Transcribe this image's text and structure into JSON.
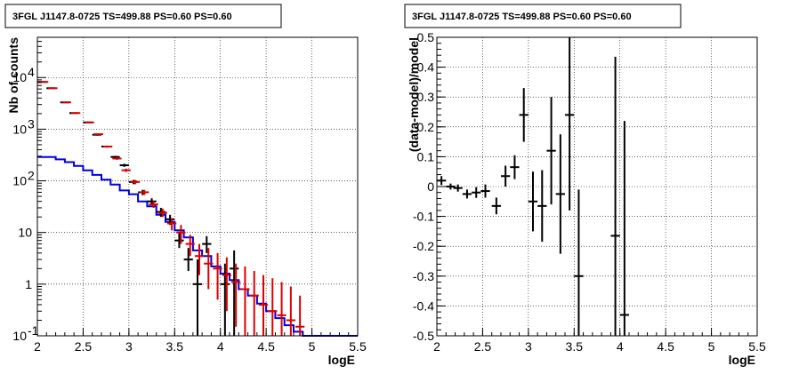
{
  "colors": {
    "data": "#000000",
    "model": "#dd0000",
    "background_model": "#0000dd"
  },
  "chart_data": [
    {
      "type": "step_histogram",
      "title": "3FGL J1147.8-0725 TS=499.88 PS=0.60 PS=0.60",
      "xlabel": "logE",
      "ylabel": "Nb of counts",
      "xlim": [
        2,
        5.5
      ],
      "ylim": [
        0.1,
        60000
      ],
      "log_y": true,
      "grid": true,
      "x_ticks": [
        "2",
        "2.5",
        "3",
        "3.5",
        "4",
        "4.5",
        "5",
        "5.5"
      ],
      "y_ticks": [
        {
          "v": 0.1,
          "label": "10",
          "exp": "-1"
        },
        {
          "v": 1,
          "label": "1",
          "exp": ""
        },
        {
          "v": 10,
          "label": "10",
          "exp": ""
        },
        {
          "v": 100,
          "label": "10",
          "exp": "2"
        },
        {
          "v": 1000,
          "label": "10",
          "exp": "3"
        },
        {
          "v": 10000,
          "label": "10",
          "exp": "4"
        }
      ],
      "data_points": [
        {
          "x": 2.05,
          "y": 8200,
          "lo": 8000,
          "hi": 8400
        },
        {
          "x": 2.15,
          "y": 6200,
          "lo": 6050,
          "hi": 6350
        },
        {
          "x": 2.3,
          "y": 3300,
          "lo": 3200,
          "hi": 3400
        },
        {
          "x": 2.4,
          "y": 2050,
          "lo": 2000,
          "hi": 2100
        },
        {
          "x": 2.55,
          "y": 1350,
          "lo": 1300,
          "hi": 1400
        },
        {
          "x": 2.65,
          "y": 780,
          "lo": 750,
          "hi": 810
        },
        {
          "x": 2.75,
          "y": 460,
          "lo": 440,
          "hi": 480
        },
        {
          "x": 2.85,
          "y": 290,
          "lo": 275,
          "hi": 305
        },
        {
          "x": 2.95,
          "y": 200,
          "lo": 186,
          "hi": 214
        },
        {
          "x": 3.05,
          "y": 95,
          "lo": 86,
          "hi": 104
        },
        {
          "x": 3.15,
          "y": 60,
          "lo": 53,
          "hi": 67
        },
        {
          "x": 3.25,
          "y": 40,
          "lo": 34,
          "hi": 46
        },
        {
          "x": 3.35,
          "y": 25,
          "lo": 20,
          "hi": 30
        },
        {
          "x": 3.45,
          "y": 18,
          "lo": 14,
          "hi": 22
        },
        {
          "x": 3.55,
          "y": 7,
          "lo": 5,
          "hi": 10
        },
        {
          "x": 3.65,
          "y": 3,
          "lo": 1.8,
          "hi": 5
        },
        {
          "x": 3.75,
          "y": 1,
          "lo": 0.1,
          "hi": 3
        },
        {
          "x": 3.85,
          "y": 6,
          "lo": 4,
          "hi": 8.5
        },
        {
          "x": 4.05,
          "y": 1,
          "lo": 0.1,
          "hi": 2.5
        },
        {
          "x": 4.15,
          "y": 2,
          "lo": 0.1,
          "hi": 4.5
        }
      ],
      "model_points": [
        {
          "x": 2.05,
          "y": 8200,
          "lo": 8000,
          "hi": 8400
        },
        {
          "x": 2.15,
          "y": 6200,
          "lo": 6050,
          "hi": 6350
        },
        {
          "x": 2.3,
          "y": 3300,
          "lo": 3200,
          "hi": 3400
        },
        {
          "x": 2.4,
          "y": 2050,
          "lo": 2000,
          "hi": 2100
        },
        {
          "x": 2.55,
          "y": 1350,
          "lo": 1300,
          "hi": 1400
        },
        {
          "x": 2.65,
          "y": 800,
          "lo": 770,
          "hi": 830
        },
        {
          "x": 2.75,
          "y": 460,
          "lo": 440,
          "hi": 480
        },
        {
          "x": 2.85,
          "y": 270,
          "lo": 255,
          "hi": 285
        },
        {
          "x": 2.95,
          "y": 160,
          "lo": 148,
          "hi": 172
        },
        {
          "x": 3.05,
          "y": 95,
          "lo": 86,
          "hi": 104
        },
        {
          "x": 3.15,
          "y": 60,
          "lo": 53,
          "hi": 67
        },
        {
          "x": 3.25,
          "y": 35,
          "lo": 30,
          "hi": 40
        },
        {
          "x": 3.35,
          "y": 24,
          "lo": 20,
          "hi": 29
        },
        {
          "x": 3.45,
          "y": 15,
          "lo": 11,
          "hi": 19
        },
        {
          "x": 3.55,
          "y": 10,
          "lo": 6,
          "hi": 14
        },
        {
          "x": 3.65,
          "y": 6,
          "lo": 3.5,
          "hi": 9
        },
        {
          "x": 3.75,
          "y": 3.5,
          "lo": 1.5,
          "hi": 6
        },
        {
          "x": 3.85,
          "y": 2.5,
          "lo": 0.8,
          "hi": 5
        },
        {
          "x": 3.95,
          "y": 2,
          "lo": 0.5,
          "hi": 4
        },
        {
          "x": 4.05,
          "y": 1.5,
          "lo": 0.3,
          "hi": 3.3
        },
        {
          "x": 4.15,
          "y": 1.1,
          "lo": 0.15,
          "hi": 2.5
        },
        {
          "x": 4.25,
          "y": 0.8,
          "lo": 0.1,
          "hi": 2.2
        },
        {
          "x": 4.35,
          "y": 0.6,
          "lo": 0.1,
          "hi": 1.8
        },
        {
          "x": 4.45,
          "y": 0.4,
          "lo": 0.1,
          "hi": 1.5
        },
        {
          "x": 4.55,
          "y": 0.3,
          "lo": 0.1,
          "hi": 1.3
        },
        {
          "x": 4.65,
          "y": 0.25,
          "lo": 0.1,
          "hi": 1.1
        },
        {
          "x": 4.75,
          "y": 0.2,
          "lo": 0.1,
          "hi": 0.9
        },
        {
          "x": 4.85,
          "y": 0.15,
          "lo": 0.1,
          "hi": 0.6
        }
      ],
      "background_steps": [
        {
          "x0": 2.0,
          "x1": 2.2,
          "y": 290
        },
        {
          "x0": 2.2,
          "x1": 2.3,
          "y": 260
        },
        {
          "x0": 2.3,
          "x1": 2.4,
          "y": 230
        },
        {
          "x0": 2.4,
          "x1": 2.5,
          "y": 195
        },
        {
          "x0": 2.5,
          "x1": 2.6,
          "y": 160
        },
        {
          "x0": 2.6,
          "x1": 2.7,
          "y": 130
        },
        {
          "x0": 2.7,
          "x1": 2.8,
          "y": 105
        },
        {
          "x0": 2.8,
          "x1": 2.9,
          "y": 85
        },
        {
          "x0": 2.9,
          "x1": 3.0,
          "y": 65
        },
        {
          "x0": 3.0,
          "x1": 3.1,
          "y": 55
        },
        {
          "x0": 3.1,
          "x1": 3.2,
          "y": 40
        },
        {
          "x0": 3.2,
          "x1": 3.3,
          "y": 32
        },
        {
          "x0": 3.3,
          "x1": 3.4,
          "y": 22
        },
        {
          "x0": 3.4,
          "x1": 3.5,
          "y": 16
        },
        {
          "x0": 3.5,
          "x1": 3.6,
          "y": 11
        },
        {
          "x0": 3.6,
          "x1": 3.7,
          "y": 8
        },
        {
          "x0": 3.7,
          "x1": 3.8,
          "y": 4.5
        },
        {
          "x0": 3.8,
          "x1": 3.9,
          "y": 3.5
        },
        {
          "x0": 3.9,
          "x1": 4.0,
          "y": 2.2
        },
        {
          "x0": 4.0,
          "x1": 4.1,
          "y": 1.6
        },
        {
          "x0": 4.1,
          "x1": 4.2,
          "y": 1.2
        },
        {
          "x0": 4.2,
          "x1": 4.3,
          "y": 0.8
        },
        {
          "x0": 4.3,
          "x1": 4.4,
          "y": 0.6
        },
        {
          "x0": 4.4,
          "x1": 4.5,
          "y": 0.42
        },
        {
          "x0": 4.5,
          "x1": 4.6,
          "y": 0.3
        },
        {
          "x0": 4.6,
          "x1": 4.7,
          "y": 0.22
        },
        {
          "x0": 4.7,
          "x1": 4.8,
          "y": 0.16
        },
        {
          "x0": 4.8,
          "x1": 4.9,
          "y": 0.12
        },
        {
          "x0": 4.9,
          "x1": 5.5,
          "y": 0.1
        }
      ]
    },
    {
      "type": "scatter_errorbars",
      "title": "3FGL J1147.8-0725 TS=499.88 PS=0.60 PS=0.60",
      "xlabel": "logE",
      "ylabel": "(data-model)/model",
      "xlim": [
        2,
        5.5
      ],
      "ylim": [
        -0.5,
        0.5
      ],
      "grid": true,
      "x_ticks": [
        "2",
        "2.5",
        "3",
        "3.5",
        "4",
        "4.5",
        "5",
        "5.5"
      ],
      "y_ticks": [
        "-0.5",
        "-0.4",
        "-0.3",
        "-0.2",
        "-0.1",
        "0",
        "0.1",
        "0.2",
        "0.3",
        "0.4",
        "0.5"
      ],
      "points": [
        {
          "x": 2.05,
          "y": 0.02,
          "err": 0.015
        },
        {
          "x": 2.15,
          "y": 0.0,
          "err": 0.01
        },
        {
          "x": 2.23,
          "y": -0.005,
          "err": 0.012
        },
        {
          "x": 2.33,
          "y": -0.025,
          "err": 0.015
        },
        {
          "x": 2.43,
          "y": -0.02,
          "err": 0.018
        },
        {
          "x": 2.53,
          "y": -0.015,
          "err": 0.022
        },
        {
          "x": 2.65,
          "y": -0.065,
          "err": 0.028
        },
        {
          "x": 2.75,
          "y": 0.035,
          "err": 0.035
        },
        {
          "x": 2.85,
          "y": 0.065,
          "err": 0.04
        },
        {
          "x": 2.95,
          "y": 0.24,
          "err": 0.09
        },
        {
          "x": 3.05,
          "y": -0.05,
          "err": 0.1
        },
        {
          "x": 3.15,
          "y": -0.065,
          "err": 0.12
        },
        {
          "x": 3.25,
          "y": 0.12,
          "err": 0.18
        },
        {
          "x": 3.35,
          "y": -0.025,
          "err": 0.2
        },
        {
          "x": 3.45,
          "y": 0.24,
          "err": 0.32
        },
        {
          "x": 3.55,
          "y": -0.3,
          "err": 0.29
        },
        {
          "x": 3.95,
          "y": -0.165,
          "err": 0.6
        },
        {
          "x": 4.05,
          "y": -0.43,
          "err": 0.65
        }
      ]
    }
  ]
}
